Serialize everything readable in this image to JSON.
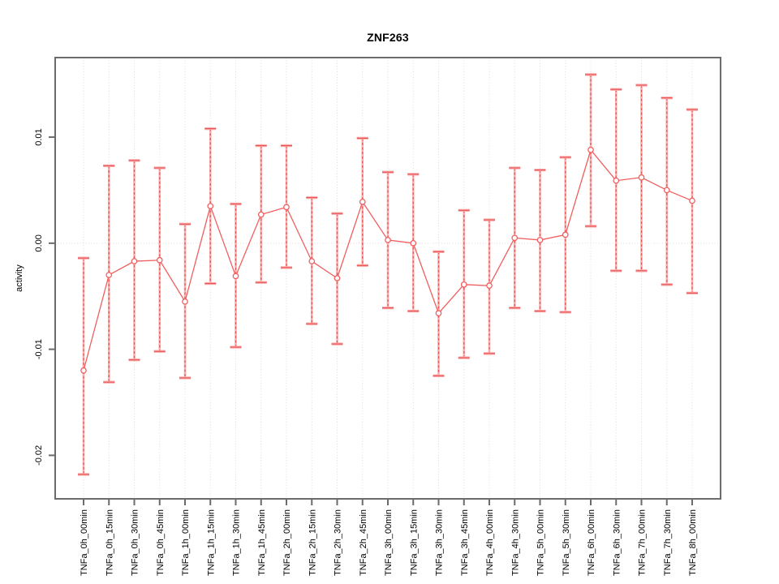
{
  "figure": {
    "title": "ZNF263"
  },
  "chart_data": {
    "type": "line",
    "title": "ZNF263",
    "xlabel": "",
    "ylabel": "activity",
    "ylim": [
      -0.0241,
      0.0175
    ],
    "grid": "dotted vertical gridline at every category; dotted horizontal line at y=0",
    "legend": "none",
    "marker": "open-circle",
    "error_bars": true,
    "yticks": [
      {
        "value": 0.01,
        "label": "0.01"
      },
      {
        "value": 0.0,
        "label": "0.00"
      },
      {
        "value": -0.01,
        "label": "-0.01"
      },
      {
        "value": -0.02,
        "label": "-0.02"
      }
    ],
    "categories": [
      "TNFa_0h_00min",
      "TNFa_0h_15min",
      "TNFa_0h_30min",
      "TNFa_0h_45min",
      "TNFa_1h_00min",
      "TNFa_1h_15min",
      "TNFa_1h_30min",
      "TNFa_1h_45min",
      "TNFa_2h_00min",
      "TNFa_2h_15min",
      "TNFa_2h_30min",
      "TNFa_2h_45min",
      "TNFa_3h_00min",
      "TNFa_3h_15min",
      "TNFa_3h_30min",
      "TNFa_3h_45min",
      "TNFa_4h_00min",
      "TNFa_4h_30min",
      "TNFa_5h_00min",
      "TNFa_5h_30min",
      "TNFa_6h_00min",
      "TNFa_6h_30min",
      "TNFa_7h_00min",
      "TNFa_7h_30min",
      "TNFa_8h_00min"
    ],
    "series": [
      {
        "name": "activity",
        "values": [
          -0.012,
          -0.003,
          -0.0017,
          -0.0016,
          -0.0055,
          0.0035,
          -0.0031,
          0.0027,
          0.0034,
          -0.0017,
          -0.0033,
          0.0039,
          0.0003,
          0.0,
          -0.0066,
          -0.0039,
          -0.004,
          0.0005,
          0.0003,
          0.0008,
          0.0088,
          0.0059,
          0.0062,
          0.005,
          0.004
        ],
        "ci_lower": [
          -0.0218,
          -0.0131,
          -0.011,
          -0.0102,
          -0.0127,
          -0.0038,
          -0.0098,
          -0.0037,
          -0.0023,
          -0.0076,
          -0.0095,
          -0.0021,
          -0.0061,
          -0.0064,
          -0.0125,
          -0.0108,
          -0.0104,
          -0.0061,
          -0.0064,
          -0.0065,
          0.0016,
          -0.0026,
          -0.0026,
          -0.0039,
          -0.0047
        ],
        "ci_upper": [
          -0.0014,
          0.0073,
          0.0078,
          0.0071,
          0.0018,
          0.0108,
          0.0037,
          0.0092,
          0.0092,
          0.0043,
          0.0028,
          0.0099,
          0.0067,
          0.0065,
          -0.0008,
          0.0031,
          0.0022,
          0.0071,
          0.0069,
          0.0081,
          0.0159,
          0.0145,
          0.0149,
          0.0137,
          0.0126
        ]
      }
    ],
    "colors": {
      "line": "#F15E5E",
      "marker_stroke": "#F15E5E",
      "marker_fill": "#FFFFFF",
      "errorbar_light": "#FAB0B0",
      "errorbar_dark": "#EA5252",
      "grid": "#DBDBDB",
      "axis": "#6B6B6B",
      "text": "#000000",
      "background": "#FFFFFF"
    }
  }
}
